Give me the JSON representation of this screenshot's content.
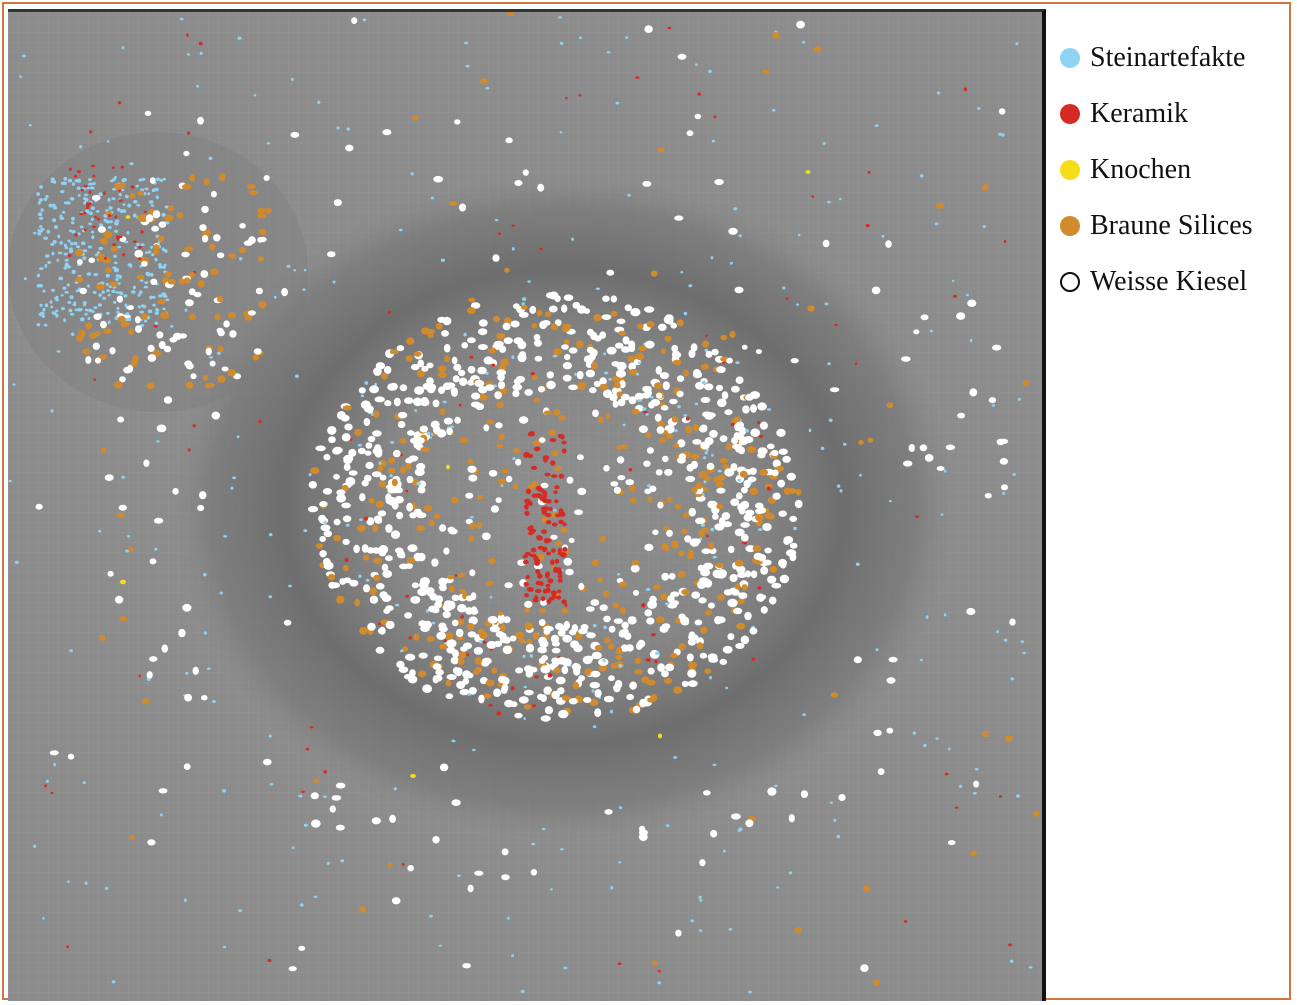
{
  "legend": {
    "items": [
      {
        "label": "Steinartefakte",
        "color": "#8fd3f4",
        "icon": "filled-circle"
      },
      {
        "label": "Keramik",
        "color": "#d62b25",
        "icon": "filled-circle"
      },
      {
        "label": "Knochen",
        "color": "#f5dd1a",
        "icon": "filled-circle"
      },
      {
        "label": "Braune Silices",
        "color": "#d18a2c",
        "icon": "filled-circle"
      },
      {
        "label": "Weisse Kiesel",
        "color": "#ffffff",
        "icon": "outline-circle"
      }
    ]
  },
  "colors": {
    "frame_border": "#d4753f",
    "plan_background": "#8c8c8c",
    "pavement": "#6f6f6f",
    "grid": "#9a9a9a"
  }
}
